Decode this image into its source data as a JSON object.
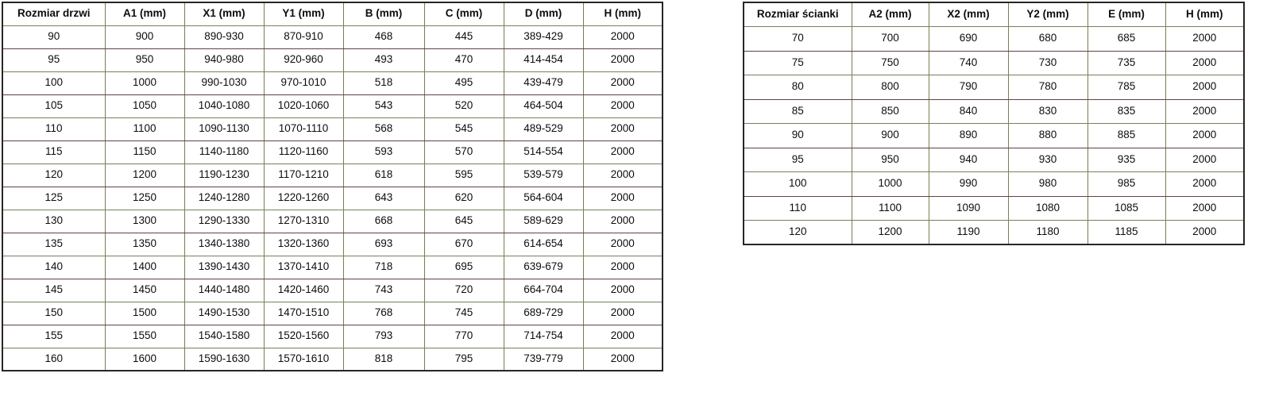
{
  "colors": {
    "outer_border": "#262626",
    "vertical_rule": "#7c7c4f",
    "horizontal_rule_green": "#6f855e",
    "horizontal_rule_maroon": "#5e4343",
    "text": "#0d0d0d",
    "background": "#ffffff"
  },
  "door_table": {
    "headers": [
      "Rozmiar drzwi",
      "A1 (mm)",
      "X1 (mm)",
      "Y1 (mm)",
      "B (mm)",
      "C (mm)",
      "D (mm)",
      "H (mm)"
    ],
    "rows": [
      [
        "90",
        "900",
        "890-930",
        "870-910",
        "468",
        "445",
        "389-429",
        "2000"
      ],
      [
        "95",
        "950",
        "940-980",
        "920-960",
        "493",
        "470",
        "414-454",
        "2000"
      ],
      [
        "100",
        "1000",
        "990-1030",
        "970-1010",
        "518",
        "495",
        "439-479",
        "2000"
      ],
      [
        "105",
        "1050",
        "1040-1080",
        "1020-1060",
        "543",
        "520",
        "464-504",
        "2000"
      ],
      [
        "110",
        "1100",
        "1090-1130",
        "1070-1110",
        "568",
        "545",
        "489-529",
        "2000"
      ],
      [
        "115",
        "1150",
        "1140-1180",
        "1120-1160",
        "593",
        "570",
        "514-554",
        "2000"
      ],
      [
        "120",
        "1200",
        "1190-1230",
        "1170-1210",
        "618",
        "595",
        "539-579",
        "2000"
      ],
      [
        "125",
        "1250",
        "1240-1280",
        "1220-1260",
        "643",
        "620",
        "564-604",
        "2000"
      ],
      [
        "130",
        "1300",
        "1290-1330",
        "1270-1310",
        "668",
        "645",
        "589-629",
        "2000"
      ],
      [
        "135",
        "1350",
        "1340-1380",
        "1320-1360",
        "693",
        "670",
        "614-654",
        "2000"
      ],
      [
        "140",
        "1400",
        "1390-1430",
        "1370-1410",
        "718",
        "695",
        "639-679",
        "2000"
      ],
      [
        "145",
        "1450",
        "1440-1480",
        "1420-1460",
        "743",
        "720",
        "664-704",
        "2000"
      ],
      [
        "150",
        "1500",
        "1490-1530",
        "1470-1510",
        "768",
        "745",
        "689-729",
        "2000"
      ],
      [
        "155",
        "1550",
        "1540-1580",
        "1520-1560",
        "793",
        "770",
        "714-754",
        "2000"
      ],
      [
        "160",
        "1600",
        "1590-1630",
        "1570-1610",
        "818",
        "795",
        "739-779",
        "2000"
      ]
    ]
  },
  "wall_table": {
    "headers": [
      "Rozmiar ścianki",
      "A2 (mm)",
      "X2 (mm)",
      "Y2 (mm)",
      "E (mm)",
      "H (mm)"
    ],
    "rows": [
      [
        "70",
        "700",
        "690",
        "680",
        "685",
        "2000"
      ],
      [
        "75",
        "750",
        "740",
        "730",
        "735",
        "2000"
      ],
      [
        "80",
        "800",
        "790",
        "780",
        "785",
        "2000"
      ],
      [
        "85",
        "850",
        "840",
        "830",
        "835",
        "2000"
      ],
      [
        "90",
        "900",
        "890",
        "880",
        "885",
        "2000"
      ],
      [
        "95",
        "950",
        "940",
        "930",
        "935",
        "2000"
      ],
      [
        "100",
        "1000",
        "990",
        "980",
        "985",
        "2000"
      ],
      [
        "110",
        "1100",
        "1090",
        "1080",
        "1085",
        "2000"
      ],
      [
        "120",
        "1200",
        "1190",
        "1180",
        "1185",
        "2000"
      ]
    ]
  }
}
